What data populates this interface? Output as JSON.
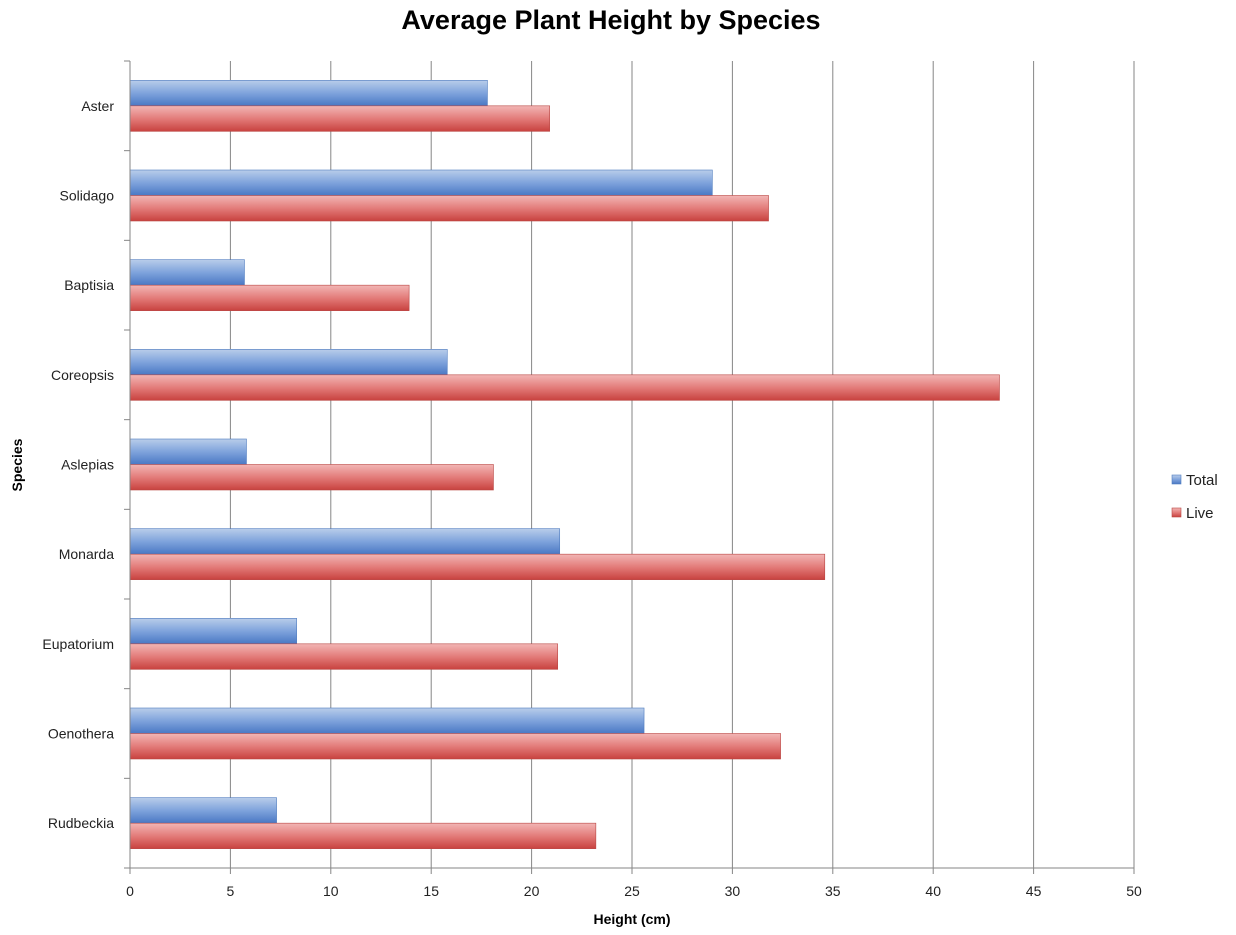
{
  "chart_data": {
    "type": "bar",
    "orientation": "horizontal",
    "title": "Average Plant Height by Species",
    "xlabel": "Height (cm)",
    "ylabel": "Species",
    "xlim": [
      0,
      50
    ],
    "xticks": [
      "0",
      "5",
      "10",
      "15",
      "20",
      "25",
      "30",
      "35",
      "40",
      "45",
      "50"
    ],
    "grid": "vertical",
    "legend_position": "right",
    "categories": [
      "Aster",
      "Solidago",
      "Baptisia",
      "Coreopsis",
      "Aslepias",
      "Monarda",
      "Eupatorium",
      "Oenothera",
      "Rudbeckia"
    ],
    "series": [
      {
        "name": "Total",
        "color": "#4F81BD",
        "values": [
          17.8,
          29.0,
          5.7,
          15.8,
          5.8,
          21.4,
          8.3,
          25.6,
          7.3
        ]
      },
      {
        "name": "Live",
        "color": "#C0504D",
        "values": [
          20.9,
          31.8,
          13.9,
          43.3,
          18.1,
          34.6,
          21.3,
          32.4,
          23.2
        ]
      }
    ]
  }
}
